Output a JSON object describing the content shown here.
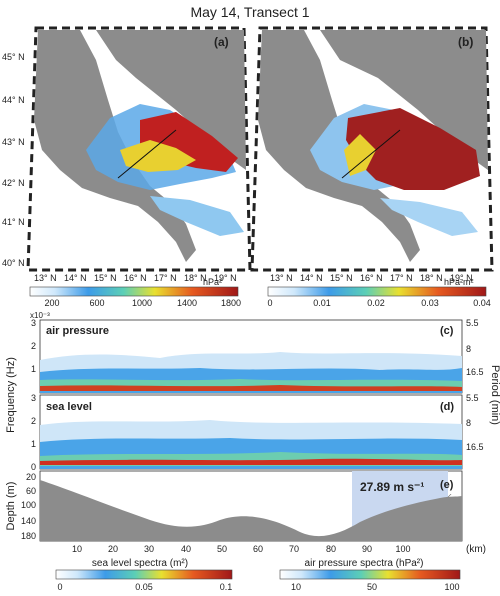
{
  "title": "May 14, Transect 1",
  "maps": [
    {
      "panel_label": "(a)",
      "colorbar": {
        "ticks": [
          "200",
          "600",
          "1000",
          "1400",
          "1800"
        ],
        "unit": "hPa²"
      }
    },
    {
      "panel_label": "(b)",
      "colorbar": {
        "ticks": [
          "0",
          "0.01",
          "0.02",
          "0.03",
          "0.04"
        ],
        "unit": "hPa²m²"
      }
    }
  ],
  "lat_labels": [
    "45° N",
    "44° N",
    "43° N",
    "42° N",
    "41° N",
    "40° N"
  ],
  "lon_labels": [
    "13° N",
    "14° N",
    "15° N",
    "16° N",
    "17° N",
    "18° N",
    "19° N"
  ],
  "spectra": {
    "exponent": "x10⁻³",
    "ylabel_left": "Frequency (Hz)",
    "ylabel_right": "Period (min)",
    "freq_ticks": [
      "3",
      "2",
      "1",
      "0"
    ],
    "period_ticks": [
      "5.5",
      "8",
      "16.5"
    ],
    "panels": [
      {
        "title": "air pressure",
        "label": "(c)"
      },
      {
        "title": "sea level",
        "label": "(d)"
      }
    ]
  },
  "depth": {
    "label": "(e)",
    "ylabel": "Depth (m)",
    "ticks": [
      "20",
      "60",
      "100",
      "140",
      "180"
    ],
    "speed_annotation": "27.89 m s⁻¹"
  },
  "x_axis": {
    "ticks": [
      "10",
      "20",
      "30",
      "40",
      "50",
      "60",
      "70",
      "80",
      "90",
      "100"
    ],
    "unit": "(km)"
  },
  "bottom_colorbars": [
    {
      "label": "sea level spectra (m²)",
      "ticks": [
        "0",
        "0.05",
        "0.1"
      ]
    },
    {
      "label": "air pressure spectra (hPa²)",
      "ticks": [
        "10",
        "50",
        "100"
      ]
    }
  ],
  "colors": {
    "land": "#8c8c8c",
    "high": "#b02020",
    "mid": "#f0d020",
    "low": "#2f8fe0"
  }
}
